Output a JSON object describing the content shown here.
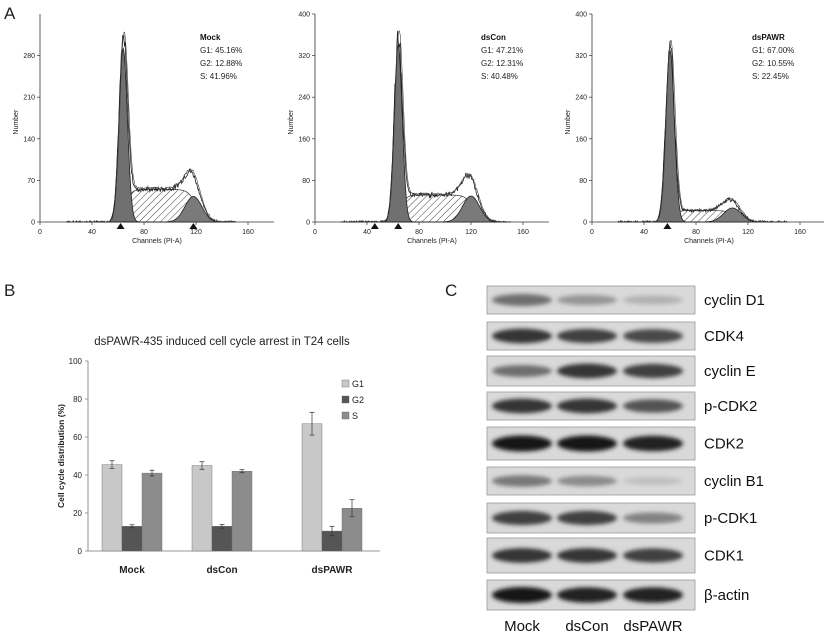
{
  "panels": {
    "a": "A",
    "b": "B",
    "c": "C"
  },
  "colors": {
    "peak": "#707070",
    "g2": "#7a7a7a",
    "bar_g1": "#c8c8c8",
    "bar_g2": "#555555",
    "bar_s": "#8c8c8c"
  },
  "chart_data": [
    {
      "type": "histogram",
      "name": "Mock",
      "title": "Mock",
      "stats": [
        "G1: 45.16%",
        "G2: 12.88%",
        "S: 41.96%"
      ],
      "xlabel": "Channels (PI-A)",
      "ylabel": "Number",
      "xticks": [
        "0",
        "40",
        "80",
        "120",
        "160"
      ],
      "yticks": [
        "0",
        "70",
        "140",
        "210",
        "280"
      ],
      "xlim": [
        0,
        180
      ],
      "ylim": [
        0,
        350
      ],
      "g1_peak": {
        "mean": 64,
        "sd": 3.2,
        "height": 292
      },
      "g2_peak": {
        "mean": 118,
        "sd": 6.5,
        "height": 43
      },
      "s_phase": {
        "from": 64,
        "to": 118,
        "height": 55
      },
      "markers": [
        62,
        118
      ]
    },
    {
      "type": "histogram",
      "name": "dsCon",
      "title": "dsCon",
      "stats": [
        "G1: 47.21%",
        "G2: 12.31%",
        "S: 40.48%"
      ],
      "xlabel": "Channels (PI-A)",
      "ylabel": "Number",
      "xticks": [
        "0",
        "40",
        "80",
        "120",
        "160"
      ],
      "yticks": [
        "0",
        "80",
        "160",
        "240",
        "320",
        "400"
      ],
      "xlim": [
        0,
        180
      ],
      "ylim": [
        0,
        400
      ],
      "g1_peak": {
        "mean": 64,
        "sd": 3.1,
        "height": 340
      },
      "g2_peak": {
        "mean": 120,
        "sd": 6.5,
        "height": 50
      },
      "s_phase": {
        "from": 64,
        "to": 120,
        "height": 52
      },
      "markers": [
        46,
        64
      ]
    },
    {
      "type": "histogram",
      "name": "dsPAWR",
      "title": "dsPAWR",
      "stats": [
        "G1: 67.00%",
        "G2: 10.55%",
        "S: 22.45%"
      ],
      "xlabel": "Channels (PI-A)",
      "ylabel": "Number",
      "xticks": [
        "0",
        "40",
        "80",
        "120",
        "160"
      ],
      "yticks": [
        "0",
        "80",
        "160",
        "240",
        "320",
        "400"
      ],
      "xlim": [
        0,
        180
      ],
      "ylim": [
        0,
        400
      ],
      "g1_peak": {
        "mean": 60,
        "sd": 3.3,
        "height": 330
      },
      "g2_peak": {
        "mean": 108,
        "sd": 6.8,
        "height": 27
      },
      "s_phase": {
        "from": 60,
        "to": 108,
        "height": 22
      },
      "markers": [
        58
      ]
    },
    {
      "type": "bar",
      "title": "dsPAWR-435 induced cell cycle arrest in T24 cells",
      "ylabel": "Cell cycle distribution (%)",
      "categories": [
        "Mock",
        "dsCon",
        "dsPAWR"
      ],
      "ylim": [
        0,
        100
      ],
      "yticks": [
        "0",
        "20",
        "40",
        "60",
        "80",
        "100"
      ],
      "series": [
        {
          "name": "G1",
          "values": [
            45.5,
            45.0,
            67.0
          ],
          "errors": [
            2.0,
            2.0,
            6.0
          ]
        },
        {
          "name": "G2",
          "values": [
            13.0,
            13.0,
            10.5
          ],
          "errors": [
            0.8,
            1.0,
            2.5
          ]
        },
        {
          "name": "S",
          "values": [
            41.0,
            42.0,
            22.5
          ],
          "errors": [
            1.5,
            0.8,
            4.5
          ]
        }
      ]
    }
  ],
  "blot": {
    "labels": [
      "cyclin D1",
      "CDK4",
      "cyclin E",
      "p-CDK2",
      "CDK2",
      "cyclin B1",
      "p-CDK1",
      "CDK1",
      "β-actin"
    ],
    "lanes": [
      "Mock",
      "dsCon",
      "dsPAWR"
    ],
    "intensity": [
      [
        0.55,
        0.35,
        0.2
      ],
      [
        0.85,
        0.8,
        0.75
      ],
      [
        0.55,
        0.85,
        0.8
      ],
      [
        0.85,
        0.85,
        0.7
      ],
      [
        1.0,
        1.0,
        0.95
      ],
      [
        0.5,
        0.4,
        0.12
      ],
      [
        0.8,
        0.8,
        0.45
      ],
      [
        0.85,
        0.85,
        0.8
      ],
      [
        1.0,
        0.95,
        0.95
      ]
    ]
  }
}
